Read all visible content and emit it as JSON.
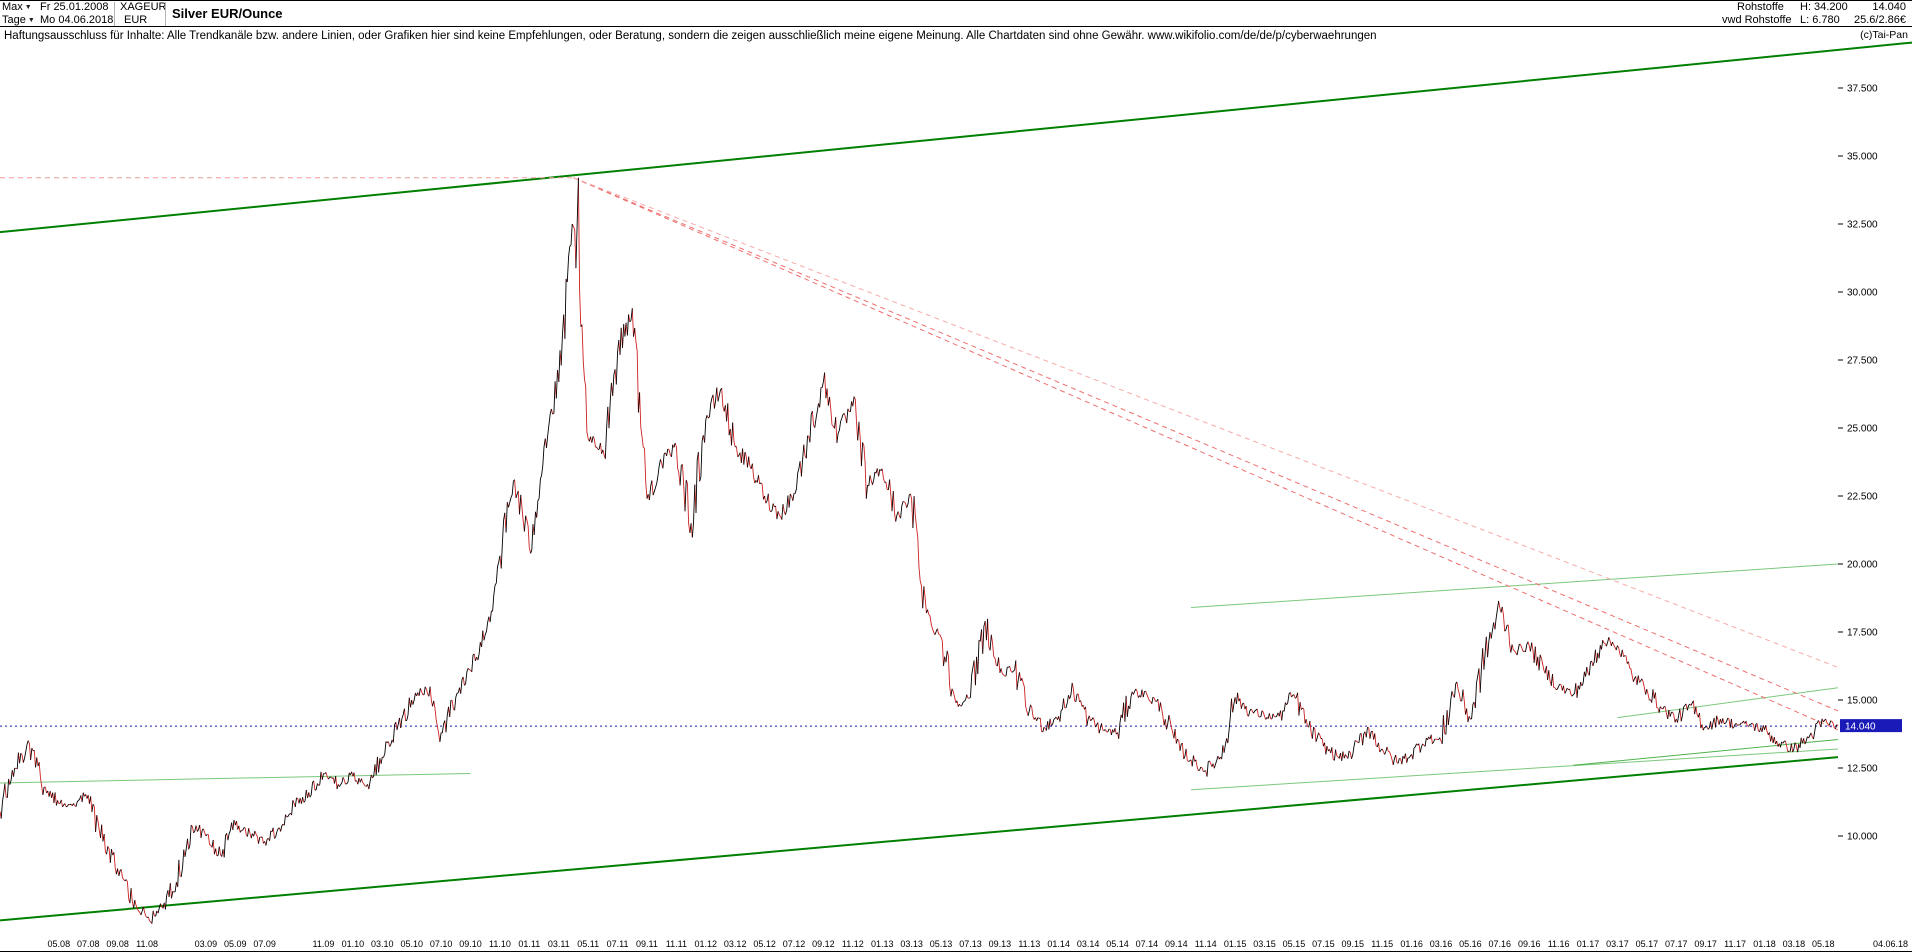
{
  "header": {
    "range_label": "Max",
    "range_value": "Fr 25.01.2008",
    "period_label": "Tage",
    "period_value": "Mo 04.06.2018",
    "symbol": "XAGEUR",
    "currency": "EUR",
    "title": "Silver EUR/Ounce",
    "feed_line1": "Rohstoffe",
    "feed_line2": "vwd Rohstoffe",
    "high_label": "H: 34.200",
    "low_label": "L: 6.780",
    "last_value": "14.040",
    "value_detail": "25.6/2.86€",
    "copyright": "(c)Tai-Pan"
  },
  "disclaimer": "Haftungsausschluss für Inhalte: Alle Trendkanäle bzw. andere Linien, oder Grafiken hier sind keine Empfehlungen, oder Beratung, sondern die zeigen ausschließlich meine eigene Meinung. Alle Chartdaten sind ohne Gewähr.  www.wikifolio.com/de/de/p/cyberwaehrungen",
  "chart_data": {
    "type": "line",
    "title": "Silver EUR/Ounce",
    "xlabel": "",
    "ylabel": "EUR",
    "start_month": "2008-01",
    "end_month": "2018-06",
    "ylim": [
      6.5,
      39.5
    ],
    "grid": false,
    "legend": "none",
    "values": [
      10.9,
      12.5,
      13.4,
      11.8,
      11.2,
      11.2,
      11.5,
      9.8,
      8.8,
      7.6,
      7.0,
      7.4,
      8.3,
      10.4,
      10.0,
      9.3,
      10.4,
      10.1,
      9.8,
      10.3,
      11.2,
      11.6,
      12.3,
      11.9,
      12.2,
      11.9,
      12.9,
      13.9,
      15.0,
      15.4,
      13.8,
      15.1,
      16.1,
      17.4,
      20.3,
      23.1,
      20.6,
      24.3,
      26.7,
      32.4,
      24.6,
      24.2,
      27.8,
      29.4,
      22.4,
      23.7,
      24.3,
      21.5,
      25.3,
      26.4,
      24.3,
      23.6,
      22.5,
      21.8,
      22.6,
      24.7,
      26.7,
      24.8,
      25.8,
      22.9,
      23.5,
      21.8,
      22.4,
      18.2,
      17.3,
      14.9,
      15.1,
      17.9,
      16.0,
      16.1,
      14.6,
      14.0,
      14.4,
      15.4,
      14.3,
      13.9,
      13.8,
      15.3,
      15.2,
      14.7,
      13.4,
      12.8,
      12.4,
      12.9,
      15.1,
      14.6,
      14.4,
      14.4,
      15.2,
      14.0,
      13.3,
      12.9,
      13.0,
      14.0,
      13.2,
      12.7,
      13.0,
      13.6,
      13.5,
      15.6,
      14.3,
      16.7,
      18.4,
      16.8,
      17.0,
      16.1,
      15.5,
      15.2,
      16.0,
      17.2,
      17.0,
      15.9,
      15.4,
      14.7,
      14.3,
      14.8,
      14.0,
      14.3,
      14.1,
      14.1,
      13.9,
      13.4,
      13.2,
      13.6,
      14.2,
      14.04
    ],
    "high_point": {
      "month": "2011-04",
      "value": 34.2
    },
    "low_point": {
      "month": "2008-11",
      "value": 6.78
    },
    "current_price": {
      "value": 14.04,
      "label": "14.040",
      "color": "#1a1ab8"
    },
    "series_colors": {
      "up": "#000000",
      "down": "#cc2020"
    },
    "y_tick_labels": [
      "37.500",
      "35.000",
      "32.500",
      "30.000",
      "27.500",
      "25.000",
      "22.500",
      "20.000",
      "17.500",
      "15.000",
      "12.500",
      "10.000"
    ],
    "x_tick_labels": [
      "05.08",
      "07.08",
      "09.08",
      "11.08",
      "03.09",
      "05.09",
      "07.09",
      "11.09",
      "01.10",
      "03.10",
      "05.10",
      "07.10",
      "09.10",
      "11.10",
      "01.11",
      "03.11",
      "05.11",
      "07.11",
      "09.11",
      "11.11",
      "01.12",
      "03.12",
      "05.12",
      "07.12",
      "09.12",
      "11.12",
      "01.13",
      "03.13",
      "05.13",
      "07.13",
      "09.13",
      "11.13",
      "01.14",
      "03.14",
      "05.14",
      "07.14",
      "09.14",
      "11.14",
      "01.15",
      "03.15",
      "05.15",
      "07.15",
      "09.15",
      "11.15",
      "01.16",
      "03.16",
      "05.16",
      "07.16",
      "09.16",
      "11.16",
      "01.17",
      "03.17",
      "05.17",
      "07.17",
      "09.17",
      "11.17",
      "01.18",
      "03.18",
      "05.18"
    ],
    "axis_date_label": "04.06.18",
    "trendlines": [
      {
        "id": "channel-top",
        "x1": "2008-01",
        "p1": 32.2,
        "x2": "2018-06",
        "p2": 38.9,
        "color": "#008000",
        "width": 2,
        "dash": "",
        "extend": true
      },
      {
        "id": "channel-bottom",
        "x1": "2008-01",
        "p1": 6.9,
        "x2": "2018-06",
        "p2": 12.9,
        "color": "#008000",
        "width": 2,
        "dash": ""
      },
      {
        "id": "support-old",
        "x1": "2008-01",
        "p1": 11.95,
        "x2": "2010-09",
        "p2": 12.3,
        "color": "#7cc87c",
        "width": 1,
        "dash": ""
      },
      {
        "id": "resistance-mid",
        "x1": "2014-10",
        "p1": 18.4,
        "x2": "2018-06",
        "p2": 20.0,
        "color": "#7cc87c",
        "width": 1,
        "dash": ""
      },
      {
        "id": "support-recent",
        "x1": "2014-10",
        "p1": 11.7,
        "x2": "2018-06",
        "p2": 13.2,
        "color": "#7cc87c",
        "width": 1,
        "dash": ""
      },
      {
        "id": "support-recent-2",
        "x1": "2016-12",
        "p1": 12.6,
        "x2": "2018-06",
        "p2": 13.55,
        "color": "#4db34d",
        "width": 1,
        "dash": ""
      },
      {
        "id": "resistance-short",
        "x1": "2017-03",
        "p1": 14.35,
        "x2": "2018-06",
        "p2": 15.45,
        "color": "#7cc87c",
        "width": 1,
        "dash": ""
      },
      {
        "id": "high-marker",
        "x1": "2008-01",
        "p1": 34.2,
        "x2": "2011-04",
        "p2": 34.2,
        "color": "#f49a9a",
        "width": 1,
        "dash": "5,4"
      },
      {
        "id": "fan-1",
        "x1": "2011-04",
        "p1": 34.2,
        "x2": "2018-06",
        "p2": 14.6,
        "color": "#ef6e6e",
        "width": 1,
        "dash": "5,4"
      },
      {
        "id": "fan-2",
        "x1": "2011-04",
        "p1": 34.2,
        "x2": "2018-06",
        "p2": 13.9,
        "color": "#ef6e6e",
        "width": 1,
        "dash": "5,4"
      },
      {
        "id": "fan-3",
        "x1": "2011-04",
        "p1": 34.2,
        "x2": "2018-06",
        "p2": 16.2,
        "color": "#f7aaaa",
        "width": 1,
        "dash": "5,4"
      }
    ]
  }
}
